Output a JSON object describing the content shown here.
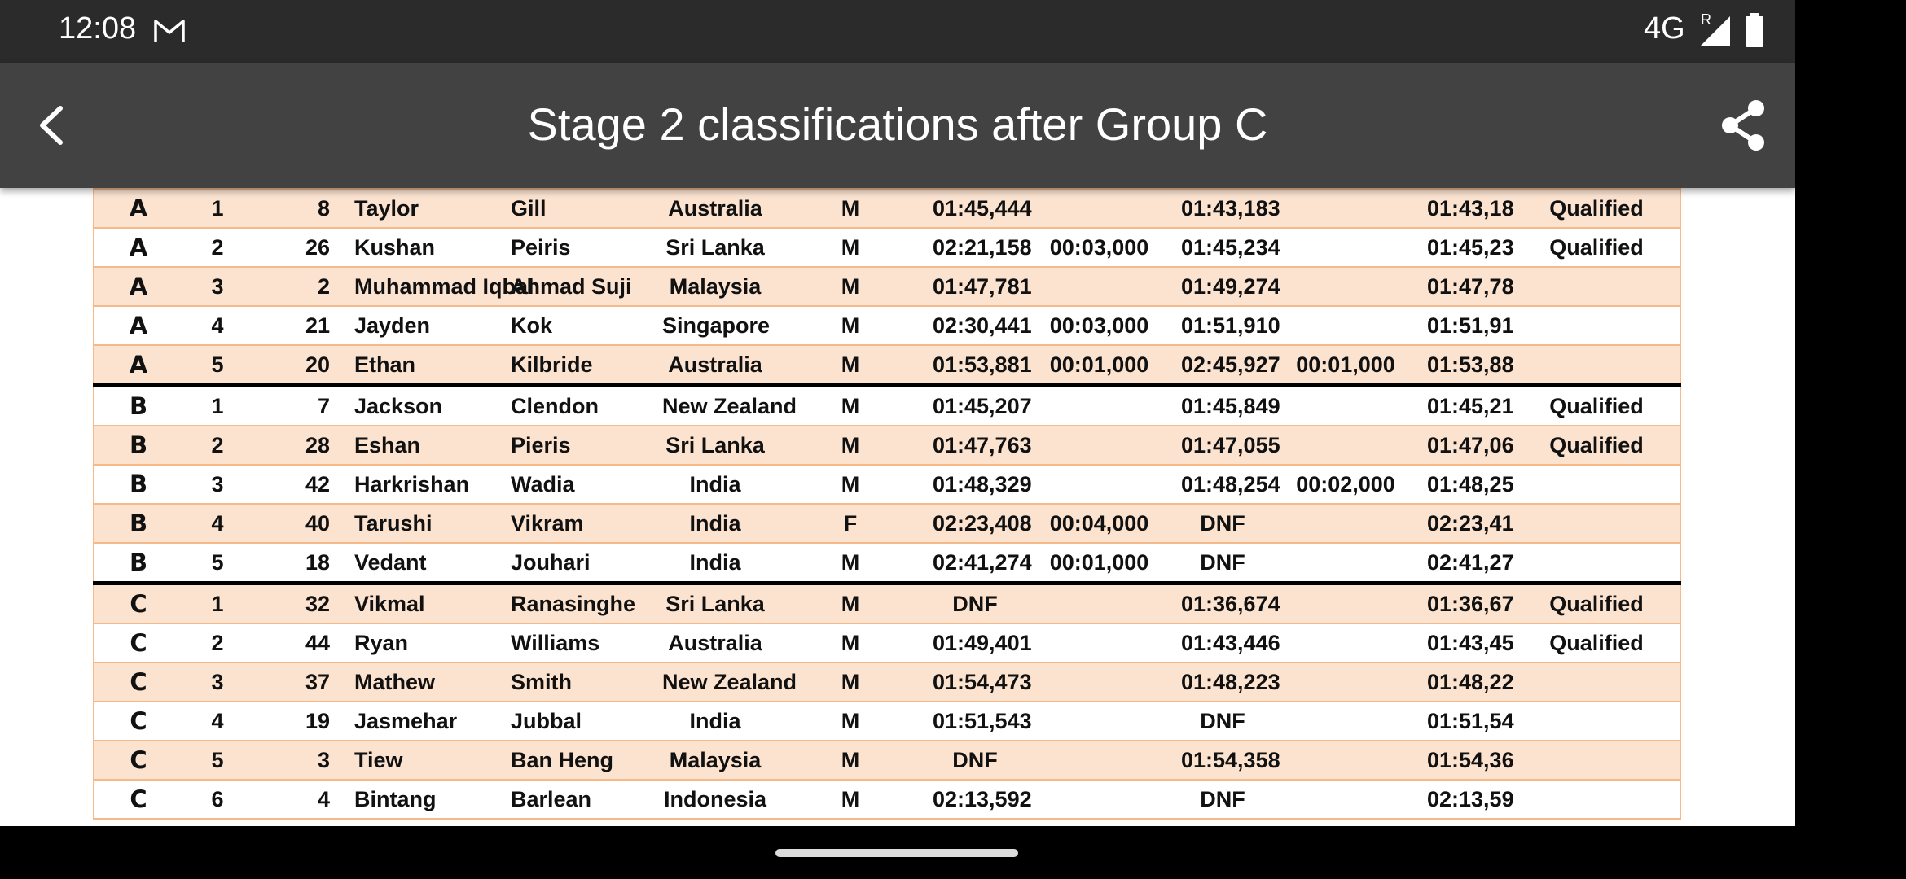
{
  "status_bar": {
    "time": "12:08",
    "network": "4G",
    "roaming": "R",
    "icons": [
      "gmail-icon",
      "signal-icon",
      "battery-icon"
    ]
  },
  "app_bar": {
    "title": "Stage 2 classifications after Group C",
    "back_icon": "chevron-left-icon",
    "share_icon": "share-icon"
  },
  "colors": {
    "status_bar_bg": "#2b2b2b",
    "app_bar_bg": "#424242",
    "row_alt": "#fbe3d0",
    "grid_line": "#f5b98a",
    "group_separator": "#000000"
  },
  "table": {
    "rows": [
      [
        "A",
        "1",
        "8",
        "Taylor",
        "Gill",
        "Australia",
        "M",
        "01:45,444",
        "",
        "01:43,183",
        "",
        "01:43,18",
        "Qualified"
      ],
      [
        "A",
        "2",
        "26",
        "Kushan",
        "Peiris",
        "Sri Lanka",
        "M",
        "02:21,158",
        "00:03,000",
        "01:45,234",
        "",
        "01:45,23",
        "Qualified"
      ],
      [
        "A",
        "3",
        "2",
        "Muhammad Iqbal",
        "Ahmad Suji",
        "Malaysia",
        "M",
        "01:47,781",
        "",
        "01:49,274",
        "",
        "01:47,78",
        ""
      ],
      [
        "A",
        "4",
        "21",
        "Jayden",
        "Kok",
        "Singapore",
        "M",
        "02:30,441",
        "00:03,000",
        "01:51,910",
        "",
        "01:51,91",
        ""
      ],
      [
        "A",
        "5",
        "20",
        "Ethan",
        "Kilbride",
        "Australia",
        "M",
        "01:53,881",
        "00:01,000",
        "02:45,927",
        "00:01,000",
        "01:53,88",
        ""
      ],
      [
        "B",
        "1",
        "7",
        "Jackson",
        "Clendon",
        "New Zealand",
        "M",
        "01:45,207",
        "",
        "01:45,849",
        "",
        "01:45,21",
        "Qualified"
      ],
      [
        "B",
        "2",
        "28",
        "Eshan",
        "Pieris",
        "Sri Lanka",
        "M",
        "01:47,763",
        "",
        "01:47,055",
        "",
        "01:47,06",
        "Qualified"
      ],
      [
        "B",
        "3",
        "42",
        "Harkrishan",
        "Wadia",
        "India",
        "M",
        "01:48,329",
        "",
        "01:48,254",
        "00:02,000",
        "01:48,25",
        ""
      ],
      [
        "B",
        "4",
        "40",
        "Tarushi",
        "Vikram",
        "India",
        "F",
        "02:23,408",
        "00:04,000",
        "DNF",
        "",
        "02:23,41",
        ""
      ],
      [
        "B",
        "5",
        "18",
        "Vedant",
        "Jouhari",
        "India",
        "M",
        "02:41,274",
        "00:01,000",
        "DNF",
        "",
        "02:41,27",
        ""
      ],
      [
        "C",
        "1",
        "32",
        "Vikmal",
        "Ranasinghe",
        "Sri Lanka",
        "M",
        "DNF",
        "",
        "01:36,674",
        "",
        "01:36,67",
        "Qualified"
      ],
      [
        "C",
        "2",
        "44",
        "Ryan",
        "Williams",
        "Australia",
        "M",
        "01:49,401",
        "",
        "01:43,446",
        "",
        "01:43,45",
        "Qualified"
      ],
      [
        "C",
        "3",
        "37",
        "Mathew",
        "Smith",
        "New Zealand",
        "M",
        "01:54,473",
        "",
        "01:48,223",
        "",
        "01:48,22",
        ""
      ],
      [
        "C",
        "4",
        "19",
        "Jasmehar",
        "Jubbal",
        "India",
        "M",
        "01:51,543",
        "",
        "DNF",
        "",
        "01:51,54",
        ""
      ],
      [
        "C",
        "5",
        "3",
        "Tiew",
        "Ban Heng",
        "Malaysia",
        "M",
        "DNF",
        "",
        "01:54,358",
        "",
        "01:54,36",
        ""
      ],
      [
        "C",
        "6",
        "4",
        "Bintang",
        "Barlean",
        "Indonesia",
        "M",
        "02:13,592",
        "",
        "DNF",
        "",
        "02:13,59",
        ""
      ]
    ]
  }
}
